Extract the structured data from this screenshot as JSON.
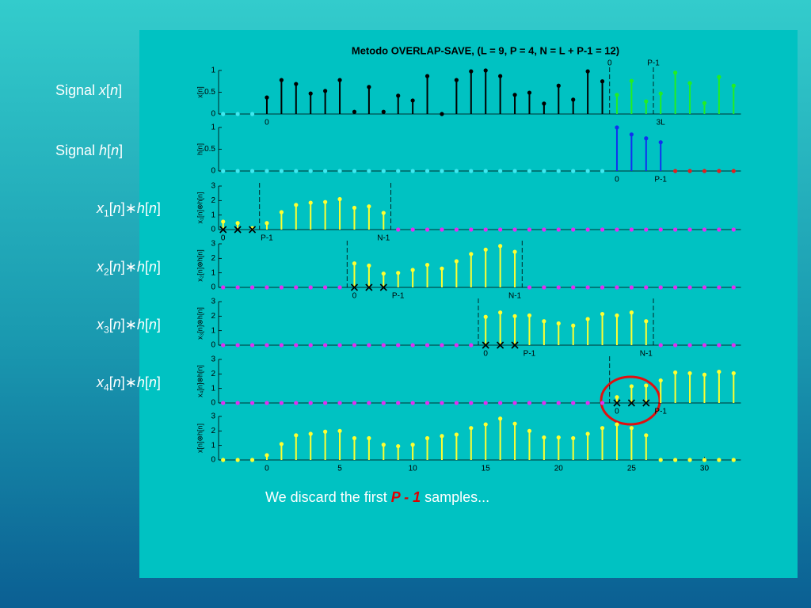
{
  "slide": {
    "title": "Metodo OVERLAP-SAVE, (L = 9, P = 4, N = L + P-1 = 12)",
    "labels": [
      [
        "Signal ",
        "x",
        "[",
        "n",
        "]"
      ],
      [
        "Signal ",
        "h",
        "[",
        "n",
        "]"
      ],
      [
        "x",
        "1",
        "[",
        "n",
        "]∗",
        "h",
        "[",
        "n",
        "]"
      ],
      [
        "x",
        "2",
        "[",
        "n",
        "]∗",
        "h",
        "[",
        "n",
        "]"
      ],
      [
        "x",
        "3",
        "[",
        "n",
        "]∗",
        "h",
        "[",
        "n",
        "]"
      ],
      [
        "x",
        "4",
        "[",
        "n",
        "]∗",
        "h",
        "[",
        "n",
        "]"
      ]
    ],
    "caption": [
      "We discard the first ",
      "P - 1",
      " samples..."
    ]
  },
  "chart_data": [
    {
      "type": "stem",
      "ylabel": "x[n]",
      "xlim": [
        -3.5,
        32.5
      ],
      "ylim": [
        0,
        1
      ],
      "yticks": [
        0,
        0.5,
        1
      ],
      "x": [
        -3,
        -2,
        -1,
        0,
        1,
        2,
        3,
        4,
        5,
        6,
        7,
        8,
        9,
        10,
        11,
        12,
        13,
        14,
        15,
        16,
        17,
        18,
        19,
        20,
        21,
        22,
        23,
        24,
        25,
        26,
        27,
        28,
        29,
        30,
        31,
        32
      ],
      "series": [
        {
          "color": "#40e8f0",
          "values": [
            0,
            0,
            0,
            null,
            null,
            null,
            null,
            null,
            null,
            null,
            null,
            null,
            null,
            null,
            null,
            null,
            null,
            null,
            null,
            null,
            null,
            null,
            null,
            null,
            null,
            null,
            null,
            null,
            null,
            null,
            null,
            null,
            null,
            null,
            null,
            null
          ]
        },
        {
          "color": "#000000",
          "values": [
            null,
            null,
            null,
            0.38,
            0.78,
            0.69,
            0.47,
            0.53,
            0.78,
            0.05,
            0.62,
            0.05,
            0.42,
            0.31,
            0.87,
            0,
            0.78,
            0.98,
            1.0,
            0.87,
            0.44,
            0.49,
            0.24,
            0.65,
            0.33,
            0.98,
            0.75,
            null,
            null,
            null,
            null,
            null,
            null,
            null,
            null,
            null
          ]
        },
        {
          "color": "#22ee22",
          "values": [
            null,
            null,
            null,
            null,
            null,
            null,
            null,
            null,
            null,
            null,
            null,
            null,
            null,
            null,
            null,
            null,
            null,
            null,
            null,
            null,
            null,
            null,
            null,
            null,
            null,
            null,
            null,
            0.44,
            0.76,
            0.29,
            0.47,
            0.95,
            0.71,
            0.25,
            0.85,
            0.65
          ]
        }
      ],
      "dashed_x": [
        23.5,
        26.5
      ],
      "annotations_top": [
        {
          "text": "0",
          "x": 23.5
        },
        {
          "text": "P-1",
          "x": 26.5
        }
      ],
      "annotations_bottom": [
        {
          "text": "0",
          "x": 0
        },
        {
          "text": "3L",
          "x": 27
        }
      ]
    },
    {
      "type": "stem",
      "ylabel": "h[n]",
      "xlim": [
        -3.5,
        32.5
      ],
      "ylim": [
        0,
        1
      ],
      "yticks": [
        0,
        0.5,
        1
      ],
      "x": [
        -3,
        -2,
        -1,
        0,
        1,
        2,
        3,
        4,
        5,
        6,
        7,
        8,
        9,
        10,
        11,
        12,
        13,
        14,
        15,
        16,
        17,
        18,
        19,
        20,
        21,
        22,
        23,
        24,
        25,
        26,
        27,
        28,
        29,
        30,
        31,
        32
      ],
      "series": [
        {
          "color": "#40e8f0",
          "values": [
            0,
            0,
            0,
            0,
            0,
            0,
            0,
            0,
            0,
            0,
            0,
            0,
            0,
            0,
            0,
            0,
            0,
            0,
            0,
            0,
            0,
            0,
            0,
            0,
            0,
            0,
            0,
            null,
            null,
            null,
            null,
            null,
            null,
            null,
            null,
            null
          ]
        },
        {
          "color": "#1030f0",
          "values": [
            null,
            null,
            null,
            null,
            null,
            null,
            null,
            null,
            null,
            null,
            null,
            null,
            null,
            null,
            null,
            null,
            null,
            null,
            null,
            null,
            null,
            null,
            null,
            null,
            null,
            null,
            null,
            1.0,
            0.84,
            0.75,
            0.66,
            null,
            null,
            null,
            null,
            null
          ]
        },
        {
          "color": "#e02020",
          "values": [
            null,
            null,
            null,
            null,
            null,
            null,
            null,
            null,
            null,
            null,
            null,
            null,
            null,
            null,
            null,
            null,
            null,
            null,
            null,
            null,
            null,
            null,
            null,
            null,
            null,
            null,
            null,
            null,
            null,
            null,
            null,
            0,
            0,
            0,
            0,
            0
          ]
        }
      ],
      "annotations_bottom": [
        {
          "text": "0",
          "x": 24
        },
        {
          "text": "P-1",
          "x": 27
        }
      ]
    },
    {
      "type": "stem",
      "ylabel": "x₁[n]⊗h[n]",
      "xlim": [
        -3.5,
        32.5
      ],
      "ylim": [
        0,
        3
      ],
      "yticks": [
        0,
        1,
        2,
        3
      ],
      "x": [
        -3,
        -2,
        -1,
        0,
        1,
        2,
        3,
        4,
        5,
        6,
        7,
        8,
        9,
        10,
        11,
        12,
        13,
        14,
        15,
        16,
        17,
        18,
        19,
        20,
        21,
        22,
        23,
        24,
        25,
        26,
        27,
        28,
        29,
        30,
        31,
        32
      ],
      "series": [
        {
          "color": "#ffff30",
          "values": [
            0.55,
            0.45,
            0.1,
            0.45,
            1.2,
            1.7,
            1.85,
            1.9,
            2.1,
            1.5,
            1.6,
            1.15,
            null,
            null,
            null,
            null,
            null,
            null,
            null,
            null,
            null,
            null,
            null,
            null,
            null,
            null,
            null,
            null,
            null,
            null,
            null,
            null,
            null,
            null,
            null,
            null
          ]
        },
        {
          "color": "#e030f0",
          "values": [
            null,
            null,
            null,
            null,
            null,
            null,
            null,
            null,
            null,
            null,
            null,
            null,
            0,
            0,
            0,
            0,
            0,
            0,
            0,
            0,
            0,
            0,
            0,
            0,
            0,
            0,
            0,
            0,
            0,
            0,
            0,
            0,
            0,
            0,
            0,
            0
          ]
        }
      ],
      "discarded_x": [
        -3,
        -2,
        -1
      ],
      "dashed_x": [
        -0.5,
        8.5
      ],
      "annotations_bottom": [
        {
          "text": "0",
          "x": -3
        },
        {
          "text": "P-1",
          "x": 0
        },
        {
          "text": "N-1",
          "x": 8
        }
      ]
    },
    {
      "type": "stem",
      "ylabel": "x₂[n]⊗h[n]",
      "xlim": [
        -3.5,
        32.5
      ],
      "ylim": [
        0,
        3
      ],
      "yticks": [
        0,
        1,
        2,
        3
      ],
      "x": [
        -3,
        -2,
        -1,
        0,
        1,
        2,
        3,
        4,
        5,
        6,
        7,
        8,
        9,
        10,
        11,
        12,
        13,
        14,
        15,
        16,
        17,
        18,
        19,
        20,
        21,
        22,
        23,
        24,
        25,
        26,
        27,
        28,
        29,
        30,
        31,
        32
      ],
      "series": [
        {
          "color": "#e030f0",
          "values": [
            0,
            0,
            0,
            0,
            0,
            0,
            0,
            0,
            0,
            null,
            null,
            null,
            null,
            null,
            null,
            null,
            null,
            null,
            null,
            null,
            null,
            0,
            0,
            0,
            0,
            0,
            0,
            0,
            0,
            0,
            0,
            0,
            0,
            0,
            0,
            0
          ]
        },
        {
          "color": "#ffff30",
          "values": [
            null,
            null,
            null,
            null,
            null,
            null,
            null,
            null,
            null,
            1.65,
            1.5,
            0.95,
            1.0,
            1.2,
            1.55,
            1.3,
            1.8,
            2.3,
            2.6,
            2.85,
            2.45,
            null,
            null,
            null,
            null,
            null,
            null,
            null,
            null,
            null,
            null,
            null,
            null,
            null,
            null,
            null
          ]
        }
      ],
      "discarded_x": [
        6,
        7,
        8
      ],
      "dashed_x": [
        5.5,
        17.5
      ],
      "annotations_bottom": [
        {
          "text": "0",
          "x": 6
        },
        {
          "text": "P-1",
          "x": 9
        },
        {
          "text": "N-1",
          "x": 17
        }
      ]
    },
    {
      "type": "stem",
      "ylabel": "x₃[n]⊗h[n]",
      "xlim": [
        -3.5,
        32.5
      ],
      "ylim": [
        0,
        3
      ],
      "yticks": [
        0,
        1,
        2,
        3
      ],
      "x": [
        -3,
        -2,
        -1,
        0,
        1,
        2,
        3,
        4,
        5,
        6,
        7,
        8,
        9,
        10,
        11,
        12,
        13,
        14,
        15,
        16,
        17,
        18,
        19,
        20,
        21,
        22,
        23,
        24,
        25,
        26,
        27,
        28,
        29,
        30,
        31,
        32
      ],
      "series": [
        {
          "color": "#e030f0",
          "values": [
            0,
            0,
            0,
            0,
            0,
            0,
            0,
            0,
            0,
            0,
            0,
            0,
            0,
            0,
            0,
            0,
            0,
            0,
            null,
            null,
            null,
            null,
            null,
            null,
            null,
            null,
            null,
            null,
            null,
            null,
            0,
            0,
            0,
            0,
            0,
            0
          ]
        },
        {
          "color": "#ffff30",
          "values": [
            null,
            null,
            null,
            null,
            null,
            null,
            null,
            null,
            null,
            null,
            null,
            null,
            null,
            null,
            null,
            null,
            null,
            null,
            1.95,
            2.25,
            2.0,
            2.05,
            1.65,
            1.5,
            1.35,
            1.8,
            2.15,
            2.05,
            2.25,
            1.65,
            null,
            null,
            null,
            null,
            null,
            null
          ]
        }
      ],
      "discarded_x": [
        15,
        16,
        17
      ],
      "dashed_x": [
        14.5,
        26.5
      ],
      "annotations_bottom": [
        {
          "text": "0",
          "x": 15
        },
        {
          "text": "P-1",
          "x": 18
        },
        {
          "text": "N-1",
          "x": 26
        }
      ]
    },
    {
      "type": "stem",
      "ylabel": "x₄[n]⊗h[n]",
      "xlim": [
        -3.5,
        32.5
      ],
      "ylim": [
        0,
        3
      ],
      "yticks": [
        0,
        1,
        2,
        3
      ],
      "x": [
        -3,
        -2,
        -1,
        0,
        1,
        2,
        3,
        4,
        5,
        6,
        7,
        8,
        9,
        10,
        11,
        12,
        13,
        14,
        15,
        16,
        17,
        18,
        19,
        20,
        21,
        22,
        23,
        24,
        25,
        26,
        27,
        28,
        29,
        30,
        31,
        32
      ],
      "series": [
        {
          "color": "#e030f0",
          "values": [
            0,
            0,
            0,
            0,
            0,
            0,
            0,
            0,
            0,
            0,
            0,
            0,
            0,
            0,
            0,
            0,
            0,
            0,
            0,
            0,
            0,
            0,
            0,
            0,
            0,
            0,
            0,
            null,
            null,
            null,
            null,
            null,
            null,
            null,
            null,
            null
          ]
        },
        {
          "color": "#ffff30",
          "values": [
            null,
            null,
            null,
            null,
            null,
            null,
            null,
            null,
            null,
            null,
            null,
            null,
            null,
            null,
            null,
            null,
            null,
            null,
            null,
            null,
            null,
            null,
            null,
            null,
            null,
            null,
            null,
            0.4,
            1.15,
            1.2,
            1.55,
            2.1,
            2.05,
            1.95,
            2.15,
            2.05
          ]
        }
      ],
      "discarded_x": [
        24,
        25,
        26
      ],
      "dashed_x": [
        23.5
      ],
      "annotations_bottom": [
        {
          "text": "0",
          "x": 24
        },
        {
          "text": "P-1",
          "x": 27
        }
      ]
    },
    {
      "type": "stem",
      "ylabel": "x[n]⊗h[n]",
      "xlim": [
        -3.5,
        32.5
      ],
      "ylim": [
        0,
        3
      ],
      "yticks": [
        0,
        1,
        2,
        3
      ],
      "xticks": [
        0,
        5,
        10,
        15,
        20,
        25,
        30
      ],
      "x": [
        -3,
        -2,
        -1,
        0,
        1,
        2,
        3,
        4,
        5,
        6,
        7,
        8,
        9,
        10,
        11,
        12,
        13,
        14,
        15,
        16,
        17,
        18,
        19,
        20,
        21,
        22,
        23,
        24,
        25,
        26,
        27,
        28,
        29,
        30,
        31,
        32
      ],
      "series": [
        {
          "color": "#ffff30",
          "values": [
            0,
            0,
            0,
            0.33,
            1.1,
            1.7,
            1.8,
            1.95,
            2.0,
            1.5,
            1.5,
            1.05,
            0.95,
            1.05,
            1.5,
            1.65,
            1.75,
            2.2,
            2.45,
            2.85,
            2.5,
            2.0,
            1.55,
            1.55,
            1.5,
            1.8,
            2.2,
            2.45,
            2.2,
            1.7,
            0,
            0,
            0,
            0,
            0,
            0
          ]
        }
      ]
    }
  ]
}
